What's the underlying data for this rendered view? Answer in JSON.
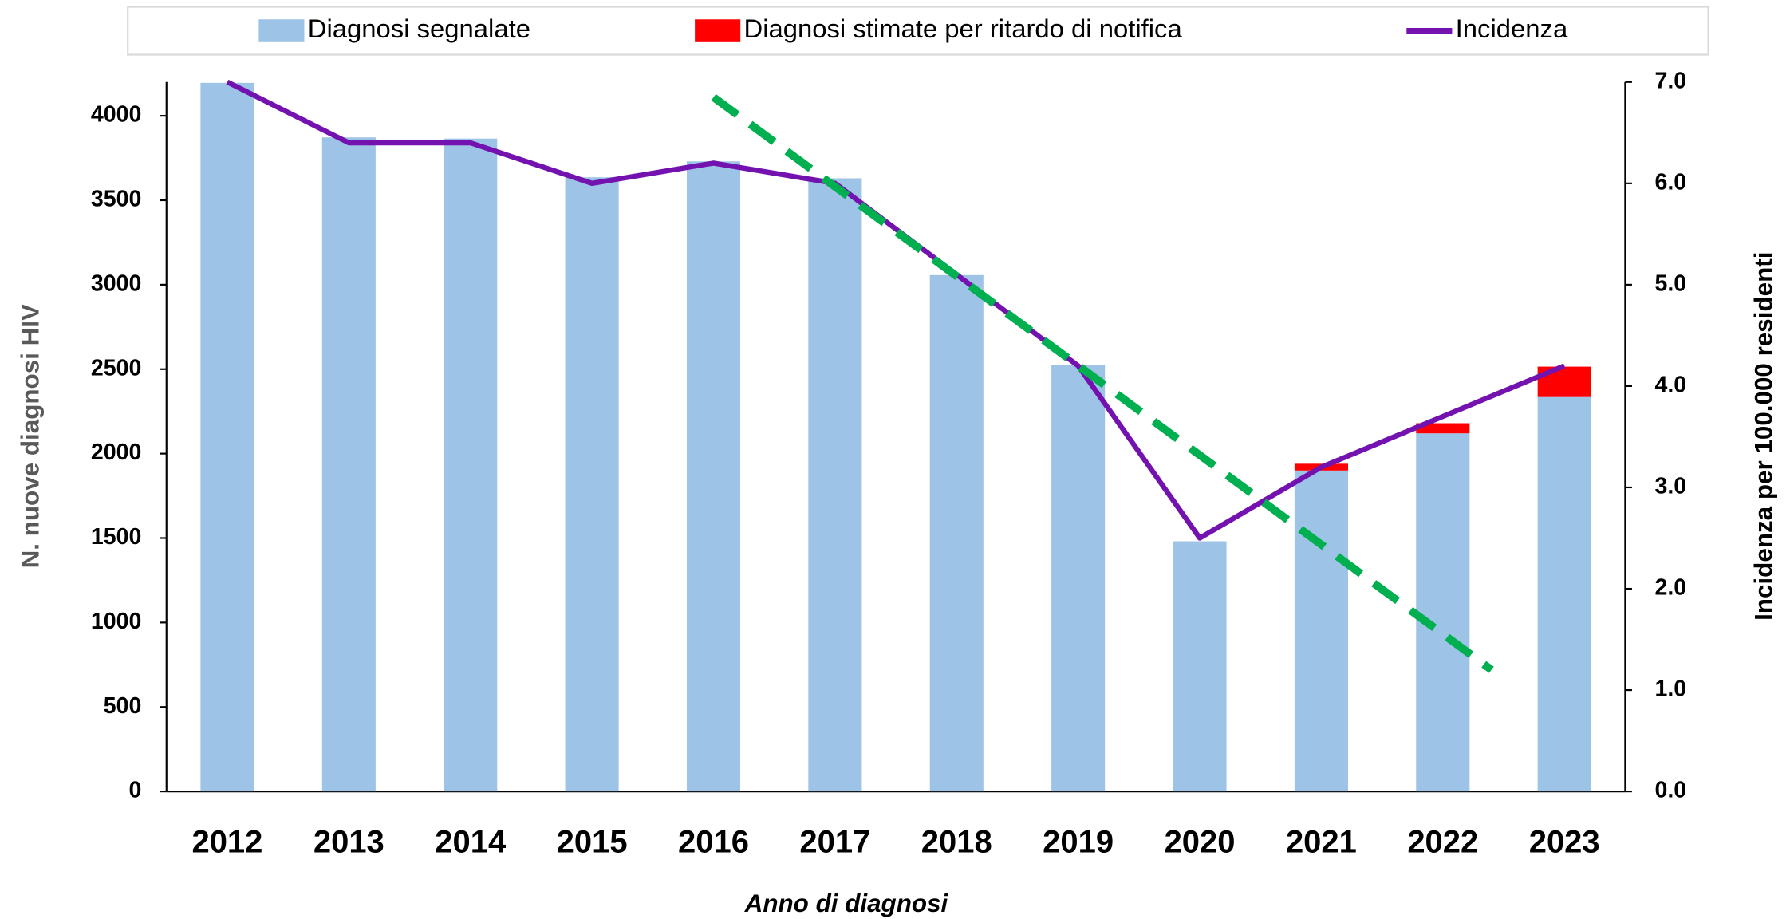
{
  "chart_data": {
    "type": "bar",
    "categories": [
      "2012",
      "2013",
      "2014",
      "2015",
      "2016",
      "2017",
      "2018",
      "2019",
      "2020",
      "2021",
      "2022",
      "2023"
    ],
    "series": [
      {
        "name": "Diagnosi segnalate",
        "color": "#9dc3e6",
        "values": [
          4195,
          3872,
          3865,
          3636,
          3730,
          3630,
          3057,
          2525,
          1481,
          1900,
          2120,
          2335
        ]
      },
      {
        "name": "Diagnosi stimate per ritardo di notifica",
        "color": "#ff0000",
        "values": [
          null,
          null,
          null,
          null,
          null,
          null,
          null,
          null,
          null,
          40,
          60,
          180
        ]
      },
      {
        "name": "Incidenza",
        "color": "#7412b0",
        "type": "line",
        "axis": "y2",
        "values": [
          7.0,
          6.4,
          6.4,
          6.0,
          6.2,
          6.0,
          5.1,
          4.2,
          2.5,
          3.2,
          3.7,
          4.2
        ]
      }
    ],
    "trendline": {
      "color": "#00b050",
      "x": [
        2016,
        2022.4
      ],
      "values": [
        6.85,
        1.2
      ]
    },
    "ylabel": "N. nuove diagnosi  HIV",
    "y2label": "Incidenza per 100.000 residenti",
    "xlabel": "Anno di diagnosi",
    "ylim": [
      0,
      4200
    ],
    "yticks": [
      0,
      500,
      1000,
      1500,
      2000,
      2500,
      3000,
      3500,
      4000
    ],
    "y2lim": [
      0,
      7
    ],
    "y2ticks": [
      {
        "value": 0,
        "label": "0.0"
      },
      {
        "value": 1,
        "label": "1.0"
      },
      {
        "value": 2,
        "label": "2.0"
      },
      {
        "value": 3,
        "label": "3.0"
      },
      {
        "value": 4,
        "label": "4.0"
      },
      {
        "value": 5,
        "label": "5.0"
      },
      {
        "value": 6,
        "label": "6.0"
      },
      {
        "value": 7,
        "label": "7.0"
      }
    ],
    "legend": "top"
  }
}
